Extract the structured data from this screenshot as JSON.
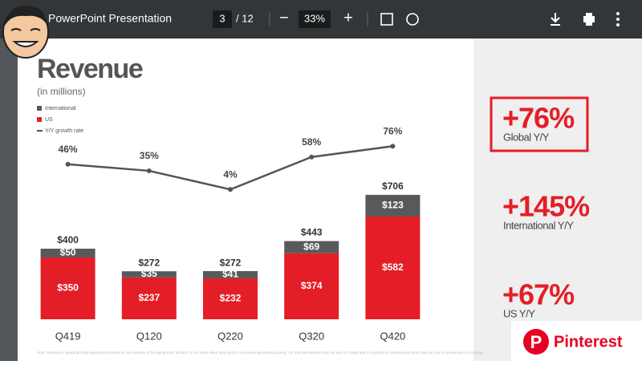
{
  "viewer": {
    "title": "PowerPoint Presentation",
    "page": "3",
    "page_total": "/ 12",
    "zoom": "33%"
  },
  "chart_data": {
    "type": "bar",
    "stacked": true,
    "title": "Revenue",
    "subtitle": "(in millions)",
    "categories": [
      "Q419",
      "Q120",
      "Q220",
      "Q320",
      "Q420"
    ],
    "series": [
      {
        "name": "International",
        "color": "#58595b",
        "values": [
          50,
          35,
          41,
          69,
          123
        ],
        "value_labels": [
          "$50",
          "$35",
          "$41",
          "$69",
          "$123"
        ]
      },
      {
        "name": "US",
        "color": "#e41e26",
        "values": [
          350,
          237,
          232,
          374,
          582
        ],
        "value_labels": [
          "$350",
          "$237",
          "$232",
          "$374",
          "$582"
        ]
      },
      {
        "name": "Y/Y growth rate",
        "color": "#555555",
        "axis": "y2",
        "values": [
          46,
          35,
          4,
          58,
          76
        ],
        "value_labels": [
          "46%",
          "35%",
          "4%",
          "58%",
          "76%"
        ]
      }
    ],
    "totals": {
      "values": [
        400,
        272,
        272,
        443,
        706
      ],
      "value_labels": [
        "$400",
        "$272",
        "$272",
        "$443",
        "$706"
      ]
    },
    "ylim": [
      0,
      1100
    ],
    "y2lim": [
      -212,
      111
    ],
    "note": "Note: Revenue is geographically apportioned based on our estimate of the geographic location of our users when they perform a revenue-generating activity. US and International may not sum to Global due to rounding as quarterly amounts may not sum to annual due to rounding."
  },
  "highlights": [
    {
      "value": "+76%",
      "label": "Global Y/Y"
    },
    {
      "value": "+145%",
      "label": "International Y/Y"
    },
    {
      "value": "+67%",
      "label": "US Y/Y"
    }
  ],
  "badge": "Pinterest"
}
